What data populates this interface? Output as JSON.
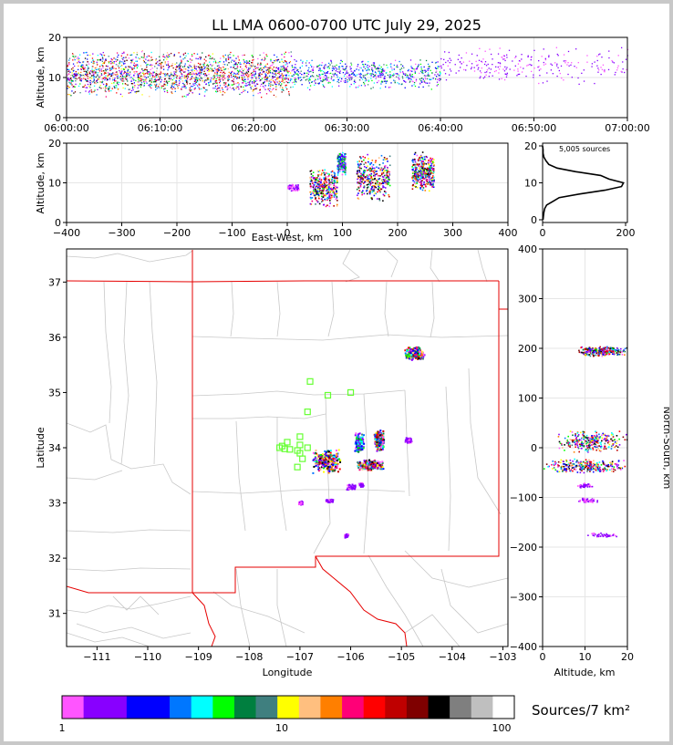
{
  "chart_data": [
    {
      "type": "scatter",
      "panel": "altitude-time",
      "title": "LL LMA 0600-0700 UTC July 29, 2025",
      "ylabel": "Altitude, km",
      "ylim": [
        0,
        20
      ],
      "yticks": [
        "0",
        "10",
        "20"
      ],
      "xticks": [
        "06:00:00",
        "06:10:00",
        "06:20:00",
        "06:30:00",
        "06:40:00",
        "06:50:00",
        "07:00:00"
      ],
      "x_minutes_range": [
        0,
        60
      ],
      "grid": true,
      "activity": [
        {
          "start_min": 0,
          "end_min": 24,
          "alt_min": 5,
          "alt_max": 17,
          "density": "high"
        },
        {
          "start_min": 24,
          "end_min": 40,
          "alt_min": 7,
          "alt_max": 15,
          "density": "medium"
        },
        {
          "start_min": 40,
          "end_min": 60,
          "alt_min": 8,
          "alt_max": 18,
          "density": "low"
        }
      ]
    },
    {
      "type": "scatter",
      "panel": "altitude-eastwest",
      "ylabel": "Altitude, km",
      "xlabel": "East-West, km",
      "xlim": [
        -400,
        400
      ],
      "ylim": [
        0,
        20
      ],
      "xticks": [
        "−400",
        "−300",
        "−200",
        "−100",
        "0",
        "100",
        "200",
        "300",
        "400"
      ],
      "yticks": [
        "0",
        "10",
        "20"
      ],
      "grid": true,
      "clusters": [
        {
          "x": [
            0,
            20
          ],
          "alt": [
            8,
            10
          ],
          "density": "low"
        },
        {
          "x": [
            40,
            90
          ],
          "alt": [
            4,
            14
          ],
          "density": "high"
        },
        {
          "x": [
            90,
            105
          ],
          "alt": [
            12,
            18
          ],
          "density": "medium"
        },
        {
          "x": [
            125,
            185
          ],
          "alt": [
            5,
            18
          ],
          "density": "high"
        },
        {
          "x": [
            225,
            265
          ],
          "alt": [
            8,
            18
          ],
          "density": "high"
        }
      ]
    },
    {
      "type": "line",
      "panel": "altitude-histogram",
      "annotation": "5,005 sources",
      "xlim": [
        0,
        200
      ],
      "ylim": [
        0,
        20
      ],
      "xticks": [
        "0",
        "200"
      ],
      "yticks": [
        "0",
        "10",
        "20"
      ],
      "profile": [
        {
          "alt": 0,
          "count": 1
        },
        {
          "alt": 1,
          "count": 2
        },
        {
          "alt": 2,
          "count": 3
        },
        {
          "alt": 3,
          "count": 5
        },
        {
          "alt": 4,
          "count": 10
        },
        {
          "alt": 5,
          "count": 25
        },
        {
          "alt": 6,
          "count": 40
        },
        {
          "alt": 7,
          "count": 90
        },
        {
          "alt": 8,
          "count": 150
        },
        {
          "alt": 9,
          "count": 190
        },
        {
          "alt": 10,
          "count": 195
        },
        {
          "alt": 11,
          "count": 160
        },
        {
          "alt": 12,
          "count": 140
        },
        {
          "alt": 13,
          "count": 80
        },
        {
          "alt": 14,
          "count": 35
        },
        {
          "alt": 15,
          "count": 15
        },
        {
          "alt": 16,
          "count": 8
        },
        {
          "alt": 17,
          "count": 3
        },
        {
          "alt": 18,
          "count": 1
        },
        {
          "alt": 19,
          "count": 1
        },
        {
          "alt": 20,
          "count": 0
        }
      ]
    },
    {
      "type": "scatter",
      "panel": "plan-view",
      "xlabel": "Longitude",
      "ylabel": "Latitude",
      "xlim": [
        -111.6,
        -102.9
      ],
      "ylim": [
        30.4,
        37.6
      ],
      "xticks": [
        "−111",
        "−110",
        "−109",
        "−108",
        "−107",
        "−106",
        "−105",
        "−104",
        "−103"
      ],
      "yticks": [
        "31",
        "32",
        "33",
        "34",
        "35",
        "36",
        "37"
      ],
      "stations": [
        {
          "lon": -106.8,
          "lat": 35.2
        },
        {
          "lon": -106.45,
          "lat": 34.95
        },
        {
          "lon": -106.0,
          "lat": 35.0
        },
        {
          "lon": -106.85,
          "lat": 34.65
        },
        {
          "lon": -107.0,
          "lat": 34.2
        },
        {
          "lon": -107.25,
          "lat": 34.1
        },
        {
          "lon": -107.0,
          "lat": 34.05
        },
        {
          "lon": -107.4,
          "lat": 34.0
        },
        {
          "lon": -107.3,
          "lat": 33.98
        },
        {
          "lon": -107.2,
          "lat": 33.97
        },
        {
          "lon": -107.05,
          "lat": 33.95
        },
        {
          "lon": -106.85,
          "lat": 34.0
        },
        {
          "lon": -107.0,
          "lat": 33.9
        },
        {
          "lon": -106.95,
          "lat": 33.8
        },
        {
          "lon": -107.05,
          "lat": 33.65
        },
        {
          "lon": -107.35,
          "lat": 34.03
        }
      ],
      "clusters": [
        {
          "lon": [
            -104.95,
            -104.55
          ],
          "lat": [
            35.6,
            35.85
          ],
          "density": "high"
        },
        {
          "lon": [
            -106.8,
            -106.2
          ],
          "lat": [
            33.55,
            34.0
          ],
          "density": "high"
        },
        {
          "lon": [
            -105.95,
            -105.75
          ],
          "lat": [
            33.9,
            34.3
          ],
          "density": "medium"
        },
        {
          "lon": [
            -105.55,
            -105.35
          ],
          "lat": [
            33.95,
            34.35
          ],
          "density": "high"
        },
        {
          "lon": [
            -105.9,
            -105.35
          ],
          "lat": [
            33.6,
            33.8
          ],
          "density": "high"
        },
        {
          "lon": [
            -104.95,
            -104.8
          ],
          "lat": [
            34.1,
            34.2
          ],
          "density": "low"
        },
        {
          "lon": [
            -105.85,
            -105.75
          ],
          "lat": [
            33.3,
            33.38
          ],
          "density": "low"
        },
        {
          "lon": [
            -106.1,
            -105.9
          ],
          "lat": [
            33.25,
            33.35
          ],
          "density": "low"
        },
        {
          "lon": [
            -107.05,
            -106.95
          ],
          "lat": [
            32.98,
            33.05
          ],
          "density": "low"
        },
        {
          "lon": [
            -106.5,
            -106.35
          ],
          "lat": [
            33.02,
            33.08
          ],
          "density": "low"
        },
        {
          "lon": [
            -106.15,
            -106.05
          ],
          "lat": [
            32.38,
            32.46
          ],
          "density": "low"
        }
      ]
    },
    {
      "type": "scatter",
      "panel": "altitude-northsouth",
      "xlabel": "Altitude, km",
      "ylabel": "North-South, km",
      "xlim": [
        0,
        20
      ],
      "ylim": [
        -400,
        400
      ],
      "xticks": [
        "0",
        "10",
        "20"
      ],
      "yticks": [
        "−400",
        "−300",
        "−200",
        "−100",
        "0",
        "100",
        "200",
        "300",
        "400"
      ],
      "clusters": [
        {
          "alt": [
            8,
            20
          ],
          "ns": [
            185,
            205
          ],
          "density": "high"
        },
        {
          "alt": [
            2,
            20
          ],
          "ns": [
            -10,
            40
          ],
          "density": "high"
        },
        {
          "alt": [
            0,
            20
          ],
          "ns": [
            -50,
            -20
          ],
          "density": "high"
        },
        {
          "alt": [
            8,
            12
          ],
          "ns": [
            -80,
            -70
          ],
          "density": "low"
        },
        {
          "alt": [
            8,
            13
          ],
          "ns": [
            -110,
            -100
          ],
          "density": "low"
        },
        {
          "alt": [
            10,
            18
          ],
          "ns": [
            -180,
            -170
          ],
          "density": "low"
        }
      ]
    }
  ],
  "colorbar": {
    "label": "Sources/7 km²",
    "ticks": [
      "1",
      "10",
      "100"
    ],
    "colors": [
      "#ff55ff",
      "#8800ff",
      "#8800ff",
      "#0000ff",
      "#0000ff",
      "#0077ff",
      "#00ffff",
      "#00ff00",
      "#007f3f",
      "#3f7f7f",
      "#ffff00",
      "#ffbf7f",
      "#ff7f00",
      "#ff0077",
      "#ff0000",
      "#bf0000",
      "#7f0000",
      "#000000",
      "#7f7f7f",
      "#bfbfbf",
      "#ffffff"
    ]
  }
}
